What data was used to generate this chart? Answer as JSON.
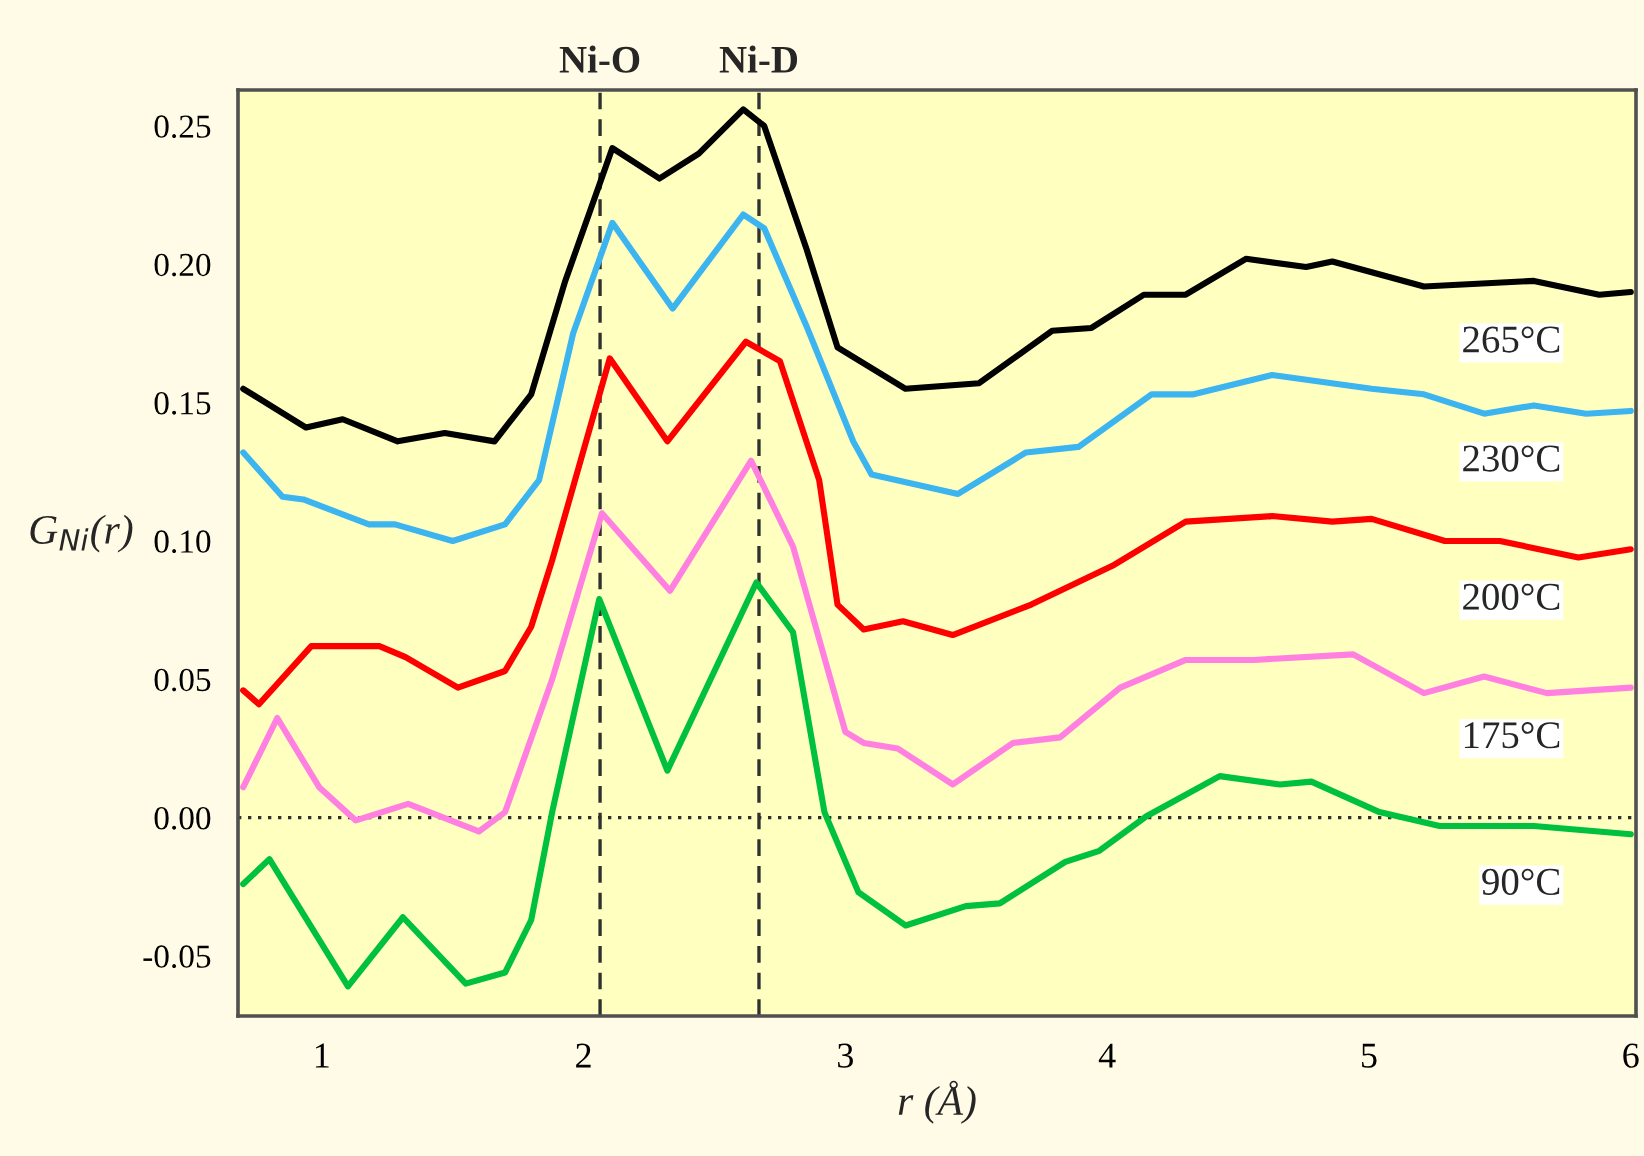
{
  "chart_data": {
    "type": "line",
    "xlabel": "r (Å)",
    "ylabel": "G$_{Ni}$(r)",
    "xlim": [
      0.68,
      6.02
    ],
    "ylim": [
      -0.0717,
      0.263
    ],
    "xticks": [
      1,
      2,
      3,
      4,
      5,
      6
    ],
    "yticks": [
      {
        "value": -0.05,
        "label": "-0.05"
      },
      {
        "value": 0.0,
        "label": "0.00"
      },
      {
        "value": 0.05,
        "label": "0.05"
      },
      {
        "value": 0.1,
        "label": "0.10"
      },
      {
        "value": 0.15,
        "label": "0.15"
      },
      {
        "value": 0.2,
        "label": "0.20"
      },
      {
        "value": 0.25,
        "label": "0.25"
      }
    ],
    "grid": false,
    "legend": false,
    "marker": "none",
    "line_style": "solid",
    "ref_lines": [
      {
        "axis": "x",
        "value": 2.063,
        "label": "Ni-O",
        "line_style": "dashed",
        "color": "#303030"
      },
      {
        "axis": "x",
        "value": 2.67,
        "label": "Ni-D",
        "line_style": "dashed",
        "color": "#303030"
      },
      {
        "axis": "y",
        "value": 0.0,
        "line_style": "dotted",
        "color": "#303030"
      }
    ],
    "series": [
      {
        "name": "265°C",
        "color": "#000000",
        "x": [
          0.7,
          0.94,
          1.08,
          1.29,
          1.47,
          1.66,
          1.8,
          1.93,
          2.11,
          2.29,
          2.44,
          2.61,
          2.69,
          2.85,
          2.97,
          3.23,
          3.51,
          3.79,
          3.94,
          4.14,
          4.3,
          4.53,
          4.76,
          4.86,
          5.21,
          5.63,
          5.88,
          6.0
        ],
        "values": [
          0.155,
          0.141,
          0.144,
          0.136,
          0.139,
          0.136,
          0.153,
          0.194,
          0.242,
          0.231,
          0.24,
          0.256,
          0.25,
          0.206,
          0.17,
          0.155,
          0.157,
          0.176,
          0.177,
          0.189,
          0.189,
          0.202,
          0.199,
          0.201,
          0.192,
          0.194,
          0.189,
          0.19
        ]
      },
      {
        "name": "230°C",
        "color": "#3cb4f0",
        "x": [
          0.7,
          0.85,
          0.93,
          1.18,
          1.28,
          1.5,
          1.7,
          1.83,
          1.96,
          2.11,
          2.34,
          2.61,
          2.69,
          2.85,
          3.03,
          3.1,
          3.43,
          3.69,
          3.89,
          4.17,
          4.33,
          4.63,
          5.01,
          5.21,
          5.44,
          5.63,
          5.83,
          6.0
        ],
        "values": [
          0.132,
          0.116,
          0.115,
          0.106,
          0.106,
          0.1,
          0.106,
          0.122,
          0.175,
          0.215,
          0.184,
          0.218,
          0.213,
          0.178,
          0.136,
          0.124,
          0.117,
          0.132,
          0.134,
          0.153,
          0.153,
          0.16,
          0.155,
          0.153,
          0.146,
          0.149,
          0.146,
          0.147
        ]
      },
      {
        "name": "200°C",
        "color": "#ff0000",
        "x": [
          0.7,
          0.76,
          0.96,
          1.22,
          1.32,
          1.52,
          1.7,
          1.8,
          1.88,
          2.1,
          2.32,
          2.62,
          2.75,
          2.9,
          2.97,
          3.07,
          3.22,
          3.41,
          3.71,
          4.02,
          4.3,
          4.63,
          4.86,
          5.01,
          5.29,
          5.5,
          5.8,
          6.0
        ],
        "values": [
          0.046,
          0.041,
          0.062,
          0.062,
          0.058,
          0.047,
          0.053,
          0.069,
          0.093,
          0.166,
          0.136,
          0.172,
          0.165,
          0.122,
          0.077,
          0.068,
          0.071,
          0.066,
          0.077,
          0.091,
          0.107,
          0.109,
          0.107,
          0.108,
          0.1,
          0.1,
          0.094,
          0.097
        ]
      },
      {
        "name": "175°C",
        "color": "#ff80e0",
        "x": [
          0.7,
          0.83,
          0.99,
          1.13,
          1.33,
          1.6,
          1.7,
          1.88,
          2.07,
          2.33,
          2.64,
          2.8,
          3.0,
          3.07,
          3.2,
          3.41,
          3.64,
          3.82,
          4.05,
          4.3,
          4.56,
          4.94,
          5.21,
          5.44,
          5.68,
          6.0
        ],
        "values": [
          0.011,
          0.036,
          0.011,
          -0.001,
          0.005,
          -0.005,
          0.002,
          0.05,
          0.11,
          0.082,
          0.129,
          0.098,
          0.031,
          0.027,
          0.025,
          0.012,
          0.027,
          0.029,
          0.047,
          0.057,
          0.057,
          0.059,
          0.045,
          0.051,
          0.045,
          0.047
        ]
      },
      {
        "name": "90°C",
        "color": "#00c040",
        "x": [
          0.7,
          0.8,
          1.1,
          1.31,
          1.55,
          1.7,
          1.8,
          1.88,
          2.06,
          2.32,
          2.66,
          2.8,
          2.92,
          3.05,
          3.23,
          3.46,
          3.59,
          3.84,
          3.97,
          4.15,
          4.43,
          4.66,
          4.78,
          5.04,
          5.27,
          5.63,
          6.0
        ],
        "values": [
          -0.024,
          -0.015,
          -0.061,
          -0.036,
          -0.06,
          -0.056,
          -0.037,
          0.002,
          0.079,
          0.017,
          0.085,
          0.067,
          0.002,
          -0.027,
          -0.039,
          -0.032,
          -0.031,
          -0.016,
          -0.012,
          0.0005,
          0.015,
          0.012,
          0.013,
          0.002,
          -0.003,
          -0.003,
          -0.006
        ]
      }
    ]
  }
}
